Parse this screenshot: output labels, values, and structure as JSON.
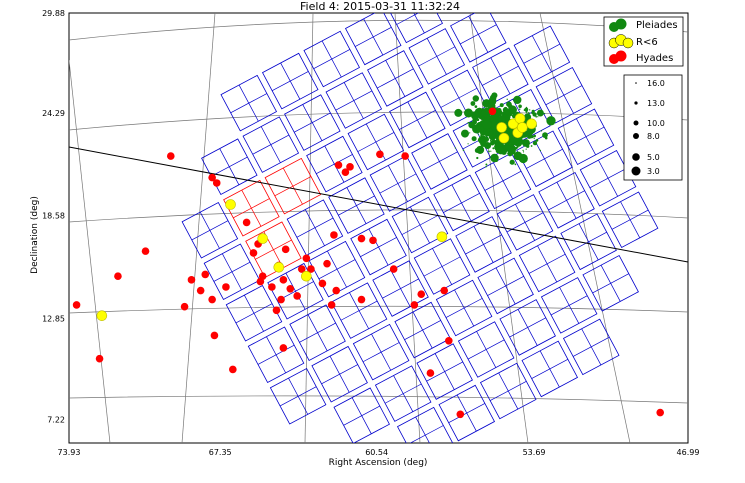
{
  "chart_data": {
    "type": "scatter",
    "title": "Field 4: 2015-03-31 11:32:24",
    "xlabel": "Right Ascension (deg)",
    "ylabel": "Declination (deg)",
    "xlim": [
      73.93,
      46.99
    ],
    "ylim": [
      5.9,
      29.88
    ],
    "x_ticks": [
      73.93,
      67.35,
      60.54,
      53.69,
      46.99
    ],
    "x_tick_labels": [
      "73.93",
      "67.35",
      "60.54",
      "53.69",
      "46.99"
    ],
    "y_ticks": [
      7.22,
      12.85,
      18.58,
      24.29,
      29.88
    ],
    "y_tick_labels": [
      "7.22",
      "12.85",
      "18.58",
      "24.29",
      "29.88"
    ],
    "legend": {
      "placement": "top-right",
      "entries": [
        {
          "label": "Pleiades",
          "color": "#118811"
        },
        {
          "label": "R<6",
          "color": "#ffff00"
        },
        {
          "label": "Hyades",
          "color": "#ff0000"
        }
      ]
    },
    "magnitude_legend": {
      "placement": "right",
      "labels": [
        "16.0",
        "13.0",
        "10.0",
        "8.0",
        "5.0",
        "3.0"
      ]
    },
    "ecliptic_line": {
      "color": "#000000",
      "from": [
        73.93,
        22.4
      ],
      "to": [
        46.99,
        17.0
      ]
    },
    "series": [
      {
        "name": "Hyades",
        "color": "#ff0000",
        "points": [
          [
            73.6,
            13.6
          ],
          [
            72.6,
            10.6
          ],
          [
            71.8,
            15.2
          ],
          [
            70.6,
            16.6
          ],
          [
            69.5,
            21.9
          ],
          [
            68.9,
            13.5
          ],
          [
            68.6,
            15.0
          ],
          [
            68.2,
            14.4
          ],
          [
            68.0,
            15.3
          ],
          [
            67.7,
            13.9
          ],
          [
            67.6,
            11.9
          ],
          [
            67.7,
            20.7
          ],
          [
            67.1,
            14.6
          ],
          [
            66.8,
            10.0
          ],
          [
            66.2,
            18.2
          ],
          [
            65.7,
            17.0
          ],
          [
            65.9,
            16.5
          ],
          [
            65.6,
            14.9
          ],
          [
            65.5,
            15.2
          ],
          [
            65.1,
            14.6
          ],
          [
            64.8,
            15.8
          ],
          [
            64.7,
            13.9
          ],
          [
            64.6,
            15.0
          ],
          [
            64.5,
            16.7
          ],
          [
            64.6,
            11.2
          ],
          [
            64.3,
            14.5
          ],
          [
            64.0,
            14.1
          ],
          [
            63.8,
            15.6
          ],
          [
            63.6,
            16.2
          ],
          [
            63.4,
            15.6
          ],
          [
            62.9,
            14.8
          ],
          [
            62.7,
            15.9
          ],
          [
            62.5,
            13.6
          ],
          [
            62.4,
            17.5
          ],
          [
            62.3,
            14.4
          ],
          [
            62.2,
            21.4
          ],
          [
            61.9,
            21.0
          ],
          [
            61.7,
            21.3
          ],
          [
            61.2,
            17.3
          ],
          [
            61.2,
            13.9
          ],
          [
            60.7,
            17.2
          ],
          [
            60.4,
            22.0
          ],
          [
            59.8,
            15.6
          ],
          [
            59.3,
            21.9
          ],
          [
            58.9,
            13.6
          ],
          [
            58.6,
            14.2
          ],
          [
            58.2,
            9.8
          ],
          [
            57.6,
            14.4
          ],
          [
            57.4,
            11.6
          ],
          [
            56.9,
            7.5
          ],
          [
            55.5,
            24.4
          ],
          [
            48.2,
            7.6
          ],
          [
            67.5,
            20.4
          ],
          [
            64.9,
            13.3
          ]
        ]
      },
      {
        "name": "R<6",
        "color": "#ffff00",
        "points": [
          [
            72.5,
            13.0
          ],
          [
            66.9,
            19.2
          ],
          [
            65.5,
            17.3
          ],
          [
            64.8,
            15.7
          ],
          [
            63.6,
            15.2
          ],
          [
            57.7,
            17.4
          ],
          [
            55.1,
            23.5
          ],
          [
            54.6,
            23.7
          ],
          [
            54.4,
            23.2
          ],
          [
            54.3,
            24.0
          ],
          [
            54.2,
            23.5
          ],
          [
            53.8,
            23.7
          ],
          [
            55.0,
            22.9
          ]
        ]
      }
    ]
  }
}
